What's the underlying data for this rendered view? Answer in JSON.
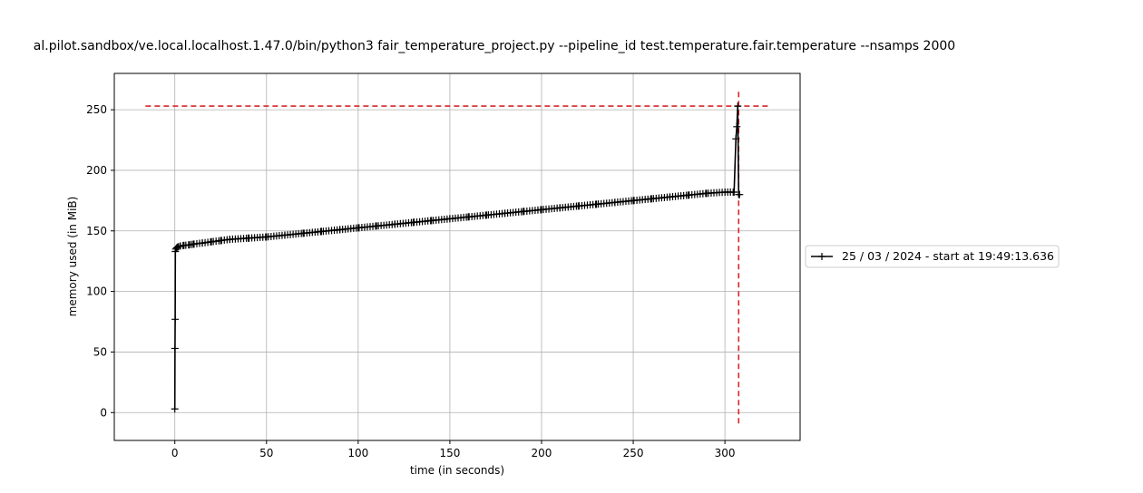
{
  "chart_data": {
    "type": "line",
    "title": "al.pilot.sandbox/ve.local.localhost.1.47.0/bin/python3 fair_temperature_project.py --pipeline_id test.temperature.fair.temperature --nsamps 2000",
    "xlabel": "time (in seconds)",
    "ylabel": "memory used (in MiB)",
    "xlim": [
      -33,
      341
    ],
    "ylim": [
      -23,
      280
    ],
    "xticks": [
      0,
      50,
      100,
      150,
      200,
      250,
      300
    ],
    "yticks": [
      0,
      50,
      100,
      150,
      200,
      250
    ],
    "grid": true,
    "legend_position": "right",
    "series": [
      {
        "name": "25 / 03 / 2024 - start at 19:49:13.636",
        "color": "#000000",
        "marker": "+",
        "x": [
          0,
          0.1,
          0.2,
          0.3,
          0.5,
          1,
          2,
          3,
          5,
          8,
          10,
          15,
          20,
          25,
          30,
          40,
          50,
          60,
          70,
          80,
          90,
          100,
          110,
          120,
          130,
          140,
          150,
          160,
          170,
          180,
          190,
          200,
          210,
          220,
          230,
          240,
          250,
          260,
          270,
          280,
          290,
          300,
          305,
          306,
          306.5,
          307,
          307.5,
          308
        ],
        "y": [
          3,
          53,
          77,
          133,
          135,
          136,
          137,
          137.5,
          138,
          138.5,
          139,
          140,
          141,
          142,
          143,
          144,
          145,
          146.5,
          148,
          149.5,
          151,
          152.5,
          154,
          155.5,
          157,
          158.5,
          160,
          161.5,
          163,
          164.5,
          166,
          167.5,
          169,
          170.5,
          172,
          173.5,
          175,
          176.5,
          178,
          179.5,
          181,
          182,
          182,
          226,
          236,
          253,
          180,
          180
        ]
      }
    ],
    "reference_lines": [
      {
        "orientation": "horizontal",
        "value": 253,
        "color": "#d62728",
        "style": "dashed",
        "from": -16,
        "to": 324
      },
      {
        "orientation": "vertical",
        "value": 307.5,
        "color": "#d62728",
        "style": "dashed",
        "from": -9,
        "to": 266
      }
    ]
  }
}
